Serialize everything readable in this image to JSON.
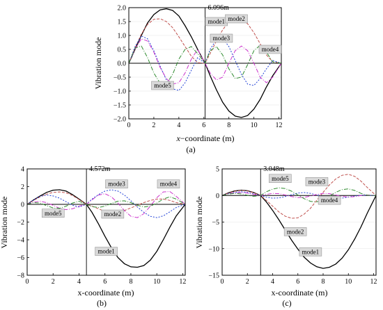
{
  "chart_data": [
    {
      "type": "line",
      "caption": "(a)",
      "xlabel_italic": "x",
      "xlabel_rest": "−coordinate (m)",
      "ylabel": "Vibration mode",
      "xlim": [
        0,
        12.192
      ],
      "ylim": [
        -2.0,
        2.0
      ],
      "xticks": [
        0,
        2,
        4,
        6,
        8,
        10,
        12
      ],
      "yticks": [
        -2.0,
        -1.5,
        -1.0,
        -0.5,
        0.0,
        0.5,
        1.0,
        1.5,
        2.0
      ],
      "ytick_labels": [
        "−2.0",
        "−1.5",
        "−1.0",
        "−0.5",
        "0.0",
        "0.5",
        "1.0",
        "1.5",
        "2.0"
      ],
      "ytick_decimals": 1,
      "grid": true,
      "support_x": 6.096,
      "support_label": "6.096m",
      "series": [
        {
          "name": "mode1",
          "color": "#000000",
          "dash": "",
          "x": [
            0,
            0.5,
            1,
            1.5,
            2,
            2.5,
            3,
            3.5,
            4,
            4.5,
            5,
            5.5,
            6.096,
            6.5,
            7,
            7.5,
            8,
            8.5,
            9,
            9.5,
            10,
            10.5,
            11,
            11.5,
            12.192
          ],
          "y": [
            0,
            0.5,
            1.0,
            1.45,
            1.75,
            1.92,
            1.96,
            1.9,
            1.7,
            1.35,
            0.95,
            0.5,
            0,
            -0.45,
            -0.95,
            -1.4,
            -1.72,
            -1.9,
            -1.95,
            -1.88,
            -1.65,
            -1.3,
            -0.85,
            -0.45,
            0
          ]
        },
        {
          "name": "mode2",
          "color": "#c0504d",
          "dash": "4,2",
          "x": [
            0,
            0.5,
            1,
            1.5,
            2,
            2.5,
            3,
            3.5,
            4,
            4.5,
            5,
            5.5,
            6.096,
            6.5,
            7,
            7.5,
            8,
            8.5,
            9,
            9.5,
            10,
            10.5,
            11,
            11.5,
            12.192
          ],
          "y": [
            0,
            0.55,
            1.05,
            1.4,
            1.58,
            1.6,
            1.5,
            1.28,
            0.95,
            0.6,
            0.25,
            0.02,
            0,
            0.35,
            0.8,
            1.2,
            1.5,
            1.62,
            1.6,
            1.42,
            1.1,
            0.7,
            0.3,
            0.05,
            0
          ]
        },
        {
          "name": "mode3",
          "color": "#1f3fd6",
          "dash": "2,2",
          "x": [
            0,
            0.5,
            1,
            1.5,
            2,
            2.5,
            3,
            3.5,
            4,
            4.5,
            5,
            5.5,
            6.096,
            6.5,
            7,
            7.5,
            8,
            8.5,
            9,
            9.5,
            10,
            10.5,
            11,
            11.5,
            12.192
          ],
          "y": [
            0,
            0.6,
            0.98,
            0.88,
            0.45,
            -0.1,
            -0.6,
            -0.92,
            -0.98,
            -0.7,
            -0.25,
            0.2,
            0,
            0.5,
            0.85,
            0.9,
            0.6,
            0.1,
            -0.4,
            -0.75,
            -0.8,
            -0.55,
            -0.2,
            0.1,
            0
          ]
        },
        {
          "name": "mode4",
          "color": "#cc33cc",
          "dash": "6,2,1,2",
          "x": [
            0,
            0.5,
            1,
            1.5,
            2,
            2.5,
            3,
            3.5,
            4,
            4.5,
            5,
            5.5,
            6.096,
            6.5,
            7,
            7.5,
            8,
            8.5,
            9,
            9.5,
            10,
            10.5,
            11,
            11.5,
            12.192
          ],
          "y": [
            0,
            0.5,
            0.88,
            0.8,
            0.4,
            -0.15,
            -0.55,
            -0.75,
            -0.7,
            -0.35,
            0.15,
            0.5,
            0,
            -0.35,
            -0.6,
            -0.5,
            0.0,
            0.45,
            0.62,
            0.45,
            0.0,
            -0.5,
            -0.7,
            -0.5,
            0
          ]
        },
        {
          "name": "mode5",
          "color": "#2e8b2e",
          "dash": "6,2,1,2",
          "x": [
            0,
            0.5,
            1,
            1.5,
            2,
            2.5,
            3,
            3.5,
            4,
            4.5,
            5,
            5.5,
            6.096,
            6.5,
            7,
            7.5,
            8,
            8.5,
            9,
            9.5,
            10,
            10.5,
            11,
            11.5,
            12.192
          ],
          "y": [
            0,
            0.55,
            0.62,
            0.2,
            -0.35,
            -0.72,
            -0.75,
            -0.4,
            0.15,
            0.5,
            0.6,
            0.35,
            0,
            0.45,
            0.6,
            0.3,
            -0.2,
            -0.55,
            -0.5,
            -0.05,
            0.45,
            0.65,
            0.4,
            0.05,
            0
          ]
        }
      ],
      "labels": [
        {
          "text": "mode1",
          "x": 7.0,
          "y": 1.5
        },
        {
          "text": "mode2",
          "x": 8.6,
          "y": 1.6
        },
        {
          "text": "mode3",
          "x": 7.4,
          "y": 0.9
        },
        {
          "text": "mode4",
          "x": 11.3,
          "y": 0.5
        },
        {
          "text": "mode5",
          "x": 2.7,
          "y": -0.8
        }
      ]
    },
    {
      "type": "line",
      "caption": "(b)",
      "xlabel_italic": "",
      "xlabel_rest": "x-coordinate (m)",
      "ylabel": "Vibration mode",
      "xlim": [
        0,
        12.192
      ],
      "ylim": [
        -8,
        4
      ],
      "xticks": [
        0,
        2,
        4,
        6,
        8,
        10,
        12
      ],
      "yticks": [
        -8,
        -6,
        -4,
        -2,
        0,
        2,
        4
      ],
      "ytick_labels": [
        "−8",
        "−6",
        "−4",
        "−2",
        "0",
        "2",
        "4"
      ],
      "ytick_decimals": 0,
      "grid": false,
      "support_x": 4.572,
      "support_label": "4.572m",
      "series": [
        {
          "name": "mode1",
          "color": "#000000",
          "dash": "",
          "x": [
            0,
            0.5,
            1,
            1.5,
            2,
            2.5,
            3,
            3.5,
            4,
            4.572,
            5,
            5.5,
            6,
            6.5,
            7,
            7.5,
            8,
            8.5,
            9,
            9.5,
            10,
            10.5,
            11,
            11.5,
            12.192
          ],
          "y": [
            0,
            0.5,
            0.95,
            1.35,
            1.6,
            1.65,
            1.5,
            1.1,
            0.6,
            0,
            -0.9,
            -2.2,
            -3.6,
            -4.9,
            -6.0,
            -6.7,
            -7.05,
            -7.1,
            -6.9,
            -6.3,
            -5.3,
            -4.0,
            -2.6,
            -1.3,
            0
          ]
        },
        {
          "name": "mode2",
          "color": "#c0504d",
          "dash": "4,2",
          "x": [
            0,
            0.5,
            1,
            1.5,
            2,
            2.5,
            3,
            3.5,
            4,
            4.572,
            5,
            5.5,
            6,
            6.5,
            7,
            7.5,
            8,
            8.5,
            9,
            9.5,
            10,
            10.5,
            11,
            11.5,
            12.192
          ],
          "y": [
            0,
            0.45,
            0.85,
            1.15,
            1.35,
            1.4,
            1.3,
            1.0,
            0.55,
            0,
            -0.2,
            -0.5,
            -0.8,
            -0.95,
            -0.9,
            -0.7,
            -0.4,
            -0.1,
            0.2,
            0.45,
            0.6,
            0.6,
            0.45,
            0.2,
            0
          ]
        },
        {
          "name": "mode3",
          "color": "#1f3fd6",
          "dash": "2,2",
          "x": [
            0,
            0.5,
            1,
            1.5,
            2,
            2.5,
            3,
            3.5,
            4,
            4.572,
            5,
            5.5,
            6,
            6.5,
            7,
            7.5,
            8,
            8.5,
            9,
            9.5,
            10,
            10.5,
            11,
            11.5,
            12.192
          ],
          "y": [
            0,
            0.5,
            0.9,
            1.05,
            0.95,
            0.7,
            0.3,
            -0.1,
            -0.3,
            0,
            0.6,
            1.1,
            1.5,
            1.65,
            1.5,
            1.05,
            0.4,
            -0.3,
            -0.9,
            -1.35,
            -1.5,
            -1.3,
            -0.85,
            -0.35,
            0
          ]
        },
        {
          "name": "mode4",
          "color": "#cc33cc",
          "dash": "6,2,1,2",
          "x": [
            0,
            0.5,
            1,
            1.5,
            2,
            2.5,
            3,
            3.5,
            4,
            4.572,
            5,
            5.5,
            6,
            6.5,
            7,
            7.5,
            8,
            8.5,
            9,
            9.5,
            10,
            10.5,
            11,
            11.5,
            12.192
          ],
          "y": [
            0,
            0.25,
            0.35,
            0.2,
            -0.1,
            -0.45,
            -0.6,
            -0.5,
            -0.2,
            0,
            0.5,
            1.05,
            1.2,
            0.85,
            0.15,
            -0.7,
            -1.35,
            -1.5,
            -1.05,
            -0.2,
            0.75,
            1.4,
            1.45,
            0.9,
            0
          ]
        },
        {
          "name": "mode5",
          "color": "#2e8b2e",
          "dash": "6,2,1,2",
          "x": [
            0,
            0.5,
            1,
            1.5,
            2,
            2.5,
            3,
            3.5,
            4,
            4.572,
            5,
            5.5,
            6,
            6.5,
            7,
            7.5,
            8,
            8.5,
            9,
            9.5,
            10,
            10.5,
            11,
            11.5,
            12.192
          ],
          "y": [
            0,
            0.2,
            0.15,
            -0.15,
            -0.4,
            -0.45,
            -0.2,
            0.15,
            0.35,
            0,
            -0.25,
            -0.35,
            -0.2,
            0.1,
            0.35,
            0.4,
            0.2,
            -0.1,
            -0.3,
            -0.2,
            0.15,
            0.6,
            0.85,
            0.6,
            0
          ]
        }
      ],
      "labels": [
        {
          "text": "mode3",
          "x": 6.9,
          "y": 2.3
        },
        {
          "text": "mode4",
          "x": 10.9,
          "y": 2.3
        },
        {
          "text": "mode5",
          "x": 2.0,
          "y": -1.0
        },
        {
          "text": "mode2",
          "x": 6.6,
          "y": -1.1
        },
        {
          "text": "mode1",
          "x": 6.1,
          "y": -5.3
        }
      ]
    },
    {
      "type": "line",
      "caption": "(c)",
      "xlabel_italic": "",
      "xlabel_rest": "x-coordinate (m)",
      "ylabel": "Vibration mode",
      "xlim": [
        0,
        12.192
      ],
      "ylim": [
        -15,
        5
      ],
      "xticks": [
        0,
        2,
        4,
        6,
        8,
        10,
        12
      ],
      "yticks": [
        -15,
        -10,
        -5,
        0,
        5
      ],
      "ytick_labels": [
        "−15",
        "−10",
        "−5",
        "0",
        "5"
      ],
      "ytick_decimals": 0,
      "grid": true,
      "support_x": 3.048,
      "support_label": "3.048m",
      "series": [
        {
          "name": "mode1",
          "color": "#000000",
          "dash": "",
          "x": [
            0,
            0.5,
            1,
            1.5,
            2,
            2.5,
            3.048,
            3.5,
            4,
            4.5,
            5,
            5.5,
            6,
            6.5,
            7,
            7.5,
            8,
            8.5,
            9,
            9.5,
            10,
            10.5,
            11,
            11.5,
            12.192
          ],
          "y": [
            0,
            0.5,
            0.85,
            1.0,
            0.9,
            0.55,
            0,
            -1.2,
            -2.8,
            -4.6,
            -6.5,
            -8.4,
            -10.1,
            -11.6,
            -12.7,
            -13.4,
            -13.7,
            -13.5,
            -12.9,
            -11.8,
            -10.2,
            -8.2,
            -5.9,
            -3.3,
            0
          ]
        },
        {
          "name": "mode2",
          "color": "#c0504d",
          "dash": "4,2",
          "x": [
            0,
            0.5,
            1,
            1.5,
            2,
            2.5,
            3.048,
            3.5,
            4,
            4.5,
            5,
            5.5,
            6,
            6.5,
            7,
            7.5,
            8,
            8.5,
            9,
            9.5,
            10,
            10.5,
            11,
            11.5,
            12.192
          ],
          "y": [
            0,
            0.45,
            0.8,
            0.95,
            0.85,
            0.5,
            0,
            -0.9,
            -2.0,
            -3.1,
            -3.9,
            -4.3,
            -4.2,
            -3.5,
            -2.4,
            -0.9,
            0.6,
            2.0,
            3.1,
            3.8,
            4.0,
            3.6,
            2.7,
            1.5,
            0
          ]
        },
        {
          "name": "mode3",
          "color": "#1f3fd6",
          "dash": "2,2",
          "x": [
            0,
            0.5,
            1,
            1.5,
            2,
            2.5,
            3.048,
            3.5,
            4,
            4.5,
            5,
            5.5,
            6,
            6.5,
            7,
            7.5,
            8,
            8.5,
            9,
            9.5,
            10,
            10.5,
            11,
            11.5,
            12.192
          ],
          "y": [
            0,
            0.35,
            0.6,
            0.7,
            0.6,
            0.3,
            0,
            -0.3,
            -0.5,
            -0.45,
            -0.2,
            0.15,
            0.45,
            0.55,
            0.4,
            0.1,
            -0.2,
            -0.45,
            -0.55,
            -0.5,
            -0.3,
            -0.1,
            0.05,
            0.05,
            0
          ]
        },
        {
          "name": "mode4",
          "color": "#cc33cc",
          "dash": "6,2,1,2",
          "x": [
            0,
            0.5,
            1,
            1.5,
            2,
            2.5,
            3.048,
            3.5,
            4,
            4.5,
            5,
            5.5,
            6,
            6.5,
            7,
            7.5,
            8,
            8.5,
            9,
            9.5,
            10,
            10.5,
            11,
            11.5,
            12.192
          ],
          "y": [
            0,
            0.3,
            0.5,
            0.55,
            0.45,
            0.2,
            0,
            0.2,
            0.4,
            0.35,
            0.1,
            -0.2,
            -0.4,
            -0.35,
            -0.1,
            0.2,
            0.4,
            0.35,
            0.1,
            -0.15,
            -0.3,
            -0.2,
            0.0,
            0.1,
            0
          ]
        },
        {
          "name": "mode5",
          "color": "#2e8b2e",
          "dash": "6,2,1,2",
          "x": [
            0,
            0.5,
            1,
            1.5,
            2,
            2.5,
            3.048,
            3.5,
            4,
            4.5,
            5,
            5.5,
            6,
            6.5,
            7,
            7.5,
            8,
            8.5,
            9,
            9.5,
            10,
            10.5,
            11,
            11.5,
            12.192
          ],
          "y": [
            0,
            0.25,
            0.4,
            0.3,
            0.05,
            -0.15,
            0,
            0.7,
            1.2,
            1.45,
            1.3,
            0.8,
            0.1,
            -0.6,
            -1.1,
            -1.2,
            -0.8,
            -0.1,
            0.6,
            1.1,
            1.25,
            0.95,
            0.4,
            0.05,
            0
          ]
        }
      ],
      "labels": [
        {
          "text": "mode5",
          "x": 4.6,
          "y": 3.2
        },
        {
          "text": "mode3",
          "x": 7.5,
          "y": 2.6
        },
        {
          "text": "mode4",
          "x": 8.5,
          "y": -0.9
        },
        {
          "text": "mode2",
          "x": 5.8,
          "y": -6.8
        },
        {
          "text": "mode1",
          "x": 7.0,
          "y": -10.6
        }
      ]
    }
  ],
  "colors": {
    "label_box_fill": "#d9d9d9",
    "label_box_stroke": "#888888",
    "grid": "#e6e6e6",
    "axis": "#000000"
  }
}
